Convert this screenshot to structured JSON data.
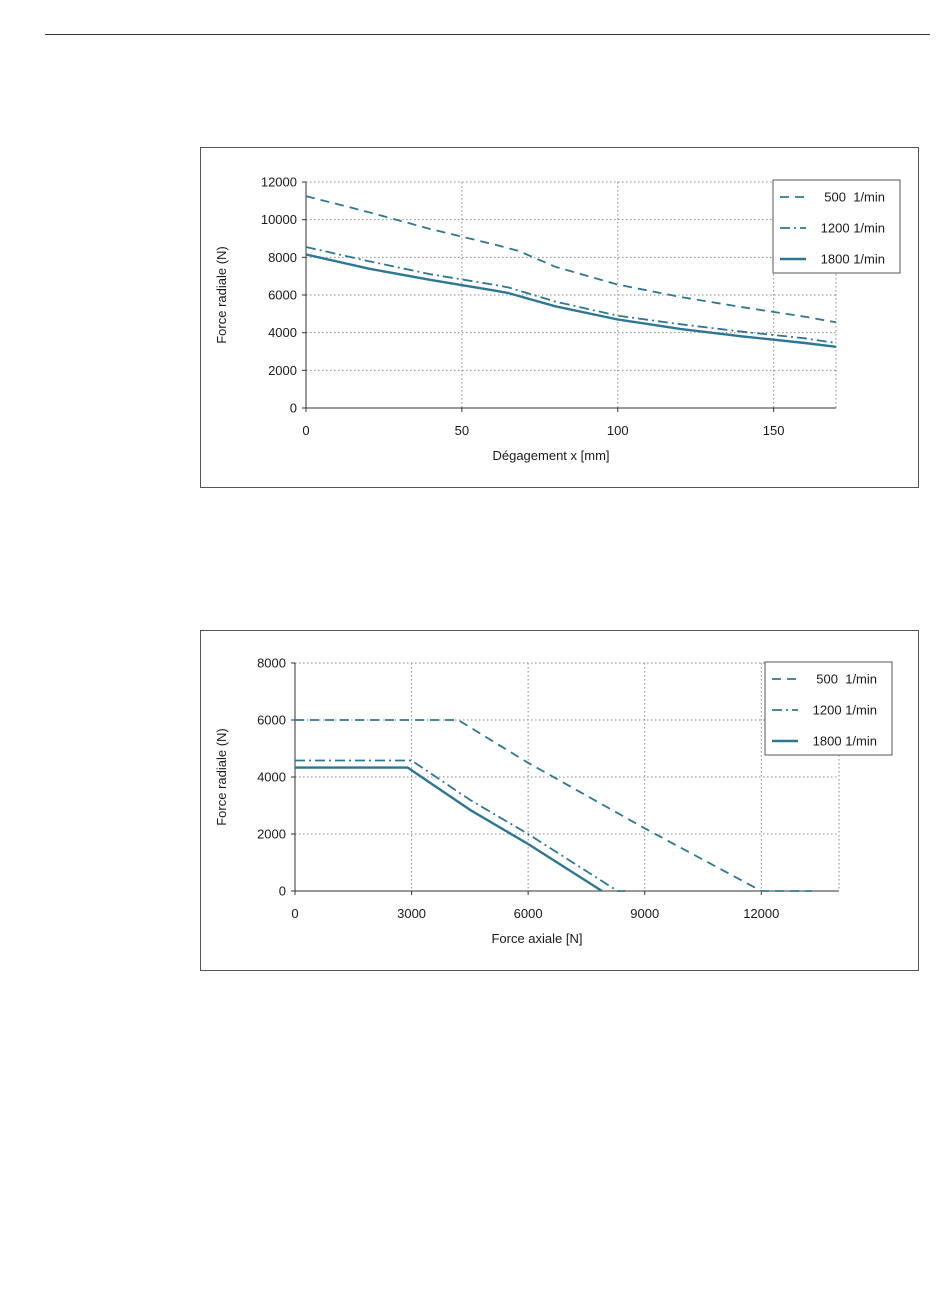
{
  "colors": {
    "series": "#2e7794",
    "grid": "#8a8a8a",
    "axis": "#333333"
  },
  "chart_data": [
    {
      "type": "line",
      "xlabel": "Dégagement x [mm]",
      "ylabel": "Force radiale (N)",
      "xlim": [
        0,
        170
      ],
      "ylim": [
        0,
        12000
      ],
      "xticks": [
        0,
        50,
        100,
        150
      ],
      "yticks": [
        0,
        2000,
        4000,
        6000,
        8000,
        10000,
        12000
      ],
      "grid": true,
      "legend_position": "top-right",
      "series": [
        {
          "name": "500  1/min",
          "style": "dashed",
          "x": [
            0,
            20,
            40,
            60,
            68,
            80,
            100,
            120,
            140,
            160,
            170
          ],
          "y": [
            11250,
            10400,
            9500,
            8700,
            8350,
            7500,
            6550,
            5900,
            5350,
            4850,
            4550
          ]
        },
        {
          "name": "1200 1/min",
          "style": "dashdot",
          "x": [
            0,
            20,
            40,
            60,
            65,
            80,
            100,
            120,
            140,
            160,
            170
          ],
          "y": [
            8550,
            7800,
            7100,
            6550,
            6400,
            5650,
            4900,
            4450,
            4050,
            3700,
            3450
          ]
        },
        {
          "name": "1800 1/min",
          "style": "solid",
          "x": [
            0,
            20,
            40,
            60,
            65,
            80,
            100,
            120,
            140,
            160,
            170
          ],
          "y": [
            8150,
            7400,
            6800,
            6250,
            6100,
            5400,
            4700,
            4200,
            3800,
            3450,
            3250
          ]
        }
      ]
    },
    {
      "type": "line",
      "xlabel": "Force axiale [N]",
      "ylabel": "Force radiale (N)",
      "xlim": [
        0,
        14000
      ],
      "ylim": [
        0,
        8000
      ],
      "xticks": [
        0,
        3000,
        6000,
        9000,
        12000
      ],
      "yticks": [
        0,
        2000,
        4000,
        6000,
        8000
      ],
      "grid": true,
      "legend_position": "top-right",
      "series": [
        {
          "name": "500  1/min",
          "style": "dashed",
          "x": [
            0,
            4200,
            6000,
            9000,
            12000,
            13300
          ],
          "y": [
            6000,
            6000,
            4500,
            2200,
            0,
            0
          ]
        },
        {
          "name": "1200 1/min",
          "style": "dashdot",
          "x": [
            0,
            3000,
            4500,
            6000,
            8300,
            8500
          ],
          "y": [
            4580,
            4580,
            3200,
            2000,
            0,
            0
          ]
        },
        {
          "name": "1800 1/min",
          "style": "solid",
          "x": [
            0,
            2900,
            4500,
            6000,
            7900
          ],
          "y": [
            4330,
            4330,
            2850,
            1650,
            0
          ]
        }
      ]
    }
  ]
}
